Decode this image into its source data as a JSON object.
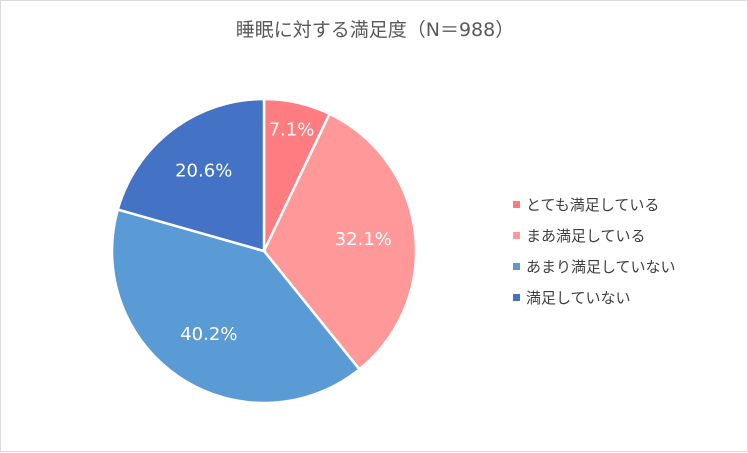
{
  "chart_data": {
    "type": "pie",
    "title": "睡眠に対する満足度（N＝988）",
    "categories": [
      "とても満足している",
      "まあ満足している",
      "あまり満足していない",
      "満足していない"
    ],
    "values": [
      7.1,
      32.1,
      40.2,
      20.6
    ],
    "labels": [
      "7.1%",
      "32.1%",
      "40.2%",
      "20.6%"
    ],
    "colors": [
      "#ff7c80",
      "#ff9999",
      "#5b9bd5",
      "#4472c4"
    ],
    "legend_position": "right"
  }
}
